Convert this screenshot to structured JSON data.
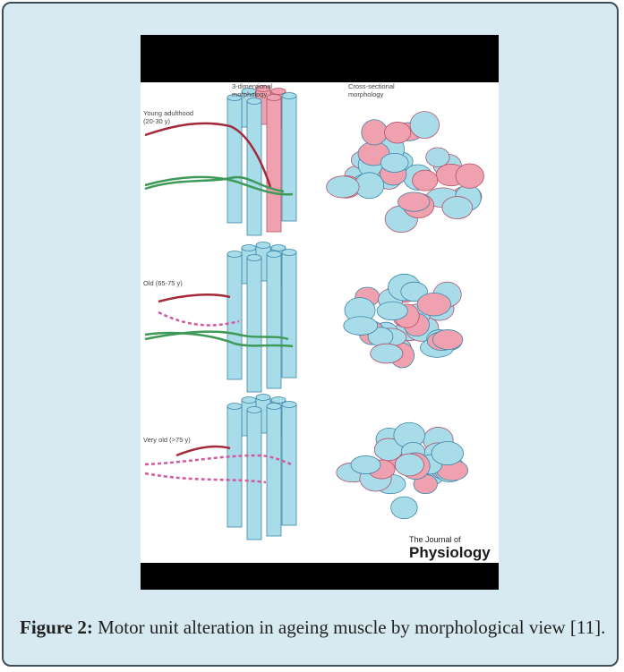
{
  "figure": {
    "column_headers": [
      [
        "3-dimentional",
        "morphology"
      ],
      [
        "Cross-sectional",
        "morphology"
      ]
    ],
    "rows": [
      [
        "Young adulthood",
        "(20-30 y)"
      ],
      [
        "Old (65-75 y)"
      ],
      [
        "Very old (>75 y)"
      ]
    ],
    "journal": [
      "The Journal of",
      "Physiology"
    ]
  },
  "caption": {
    "label": "Figure 2:",
    "text": "Motor unit alteration in ageing muscle by morphological view [11]."
  }
}
